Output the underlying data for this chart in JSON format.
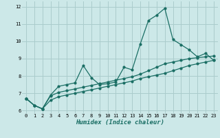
{
  "title": "",
  "xlabel": "Humidex (Indice chaleur)",
  "background_color": "#cce8e8",
  "grid_color": "#aacccc",
  "line_color": "#1a6e64",
  "x_values": [
    0,
    1,
    2,
    3,
    4,
    5,
    6,
    7,
    8,
    9,
    10,
    11,
    12,
    13,
    14,
    15,
    16,
    17,
    18,
    19,
    20,
    21,
    22,
    23
  ],
  "series1": [
    6.7,
    6.3,
    6.1,
    6.9,
    7.4,
    7.5,
    7.6,
    8.6,
    7.9,
    7.5,
    7.55,
    7.65,
    8.5,
    8.35,
    9.85,
    11.2,
    11.5,
    11.9,
    10.1,
    9.8,
    9.5,
    9.1,
    9.3,
    8.9
  ],
  "series2": [
    6.7,
    6.3,
    6.1,
    6.85,
    7.05,
    7.15,
    7.25,
    7.35,
    7.45,
    7.55,
    7.65,
    7.75,
    7.85,
    7.95,
    8.1,
    8.3,
    8.5,
    8.7,
    8.8,
    8.9,
    9.0,
    9.05,
    9.1,
    9.15
  ],
  "series3": [
    6.7,
    6.3,
    6.1,
    6.6,
    6.8,
    6.9,
    7.0,
    7.1,
    7.2,
    7.3,
    7.4,
    7.5,
    7.6,
    7.7,
    7.85,
    7.95,
    8.05,
    8.15,
    8.3,
    8.45,
    8.6,
    8.7,
    8.8,
    8.9
  ],
  "ylim": [
    5.85,
    12.3
  ],
  "yticks": [
    6,
    7,
    8,
    9,
    10,
    11,
    12
  ],
  "xlim": [
    -0.5,
    23.5
  ],
  "xticks": [
    0,
    1,
    2,
    3,
    4,
    5,
    6,
    7,
    8,
    9,
    10,
    11,
    12,
    13,
    14,
    15,
    16,
    17,
    18,
    19,
    20,
    21,
    22,
    23
  ]
}
